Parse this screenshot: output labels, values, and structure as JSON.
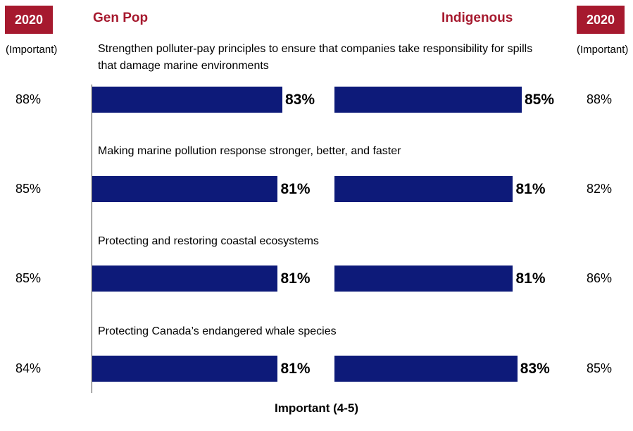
{
  "header": {
    "left_year": "2020",
    "right_year": "2020",
    "left_group": "Gen Pop",
    "right_group": "Indigenous",
    "left_sublabel": "(Important)",
    "right_sublabel": "(Important)"
  },
  "colors": {
    "accent": "#a6192e",
    "bar": "#0d1a79"
  },
  "chart_data": {
    "type": "bar",
    "orientation": "horizontal",
    "xlabel": "Important (4-5)",
    "categories": [
      "Strengthen polluter-pay principles to ensure that companies take responsibility for spills that damage marine environments",
      "Making marine pollution response stronger, better, and faster",
      "Protecting and restoring coastal ecosystems",
      "Protecting Canada’s endangered whale species"
    ],
    "series": [
      {
        "name": "Gen Pop",
        "values": [
          83,
          81,
          81,
          81
        ]
      },
      {
        "name": "Indigenous",
        "values": [
          85,
          81,
          81,
          83
        ]
      }
    ],
    "comparison_2020": {
      "gen_pop": [
        88,
        85,
        85,
        84
      ],
      "indigenous": [
        88,
        82,
        86,
        85
      ]
    },
    "value_suffix": "%",
    "xlim": [
      0,
      100
    ]
  }
}
